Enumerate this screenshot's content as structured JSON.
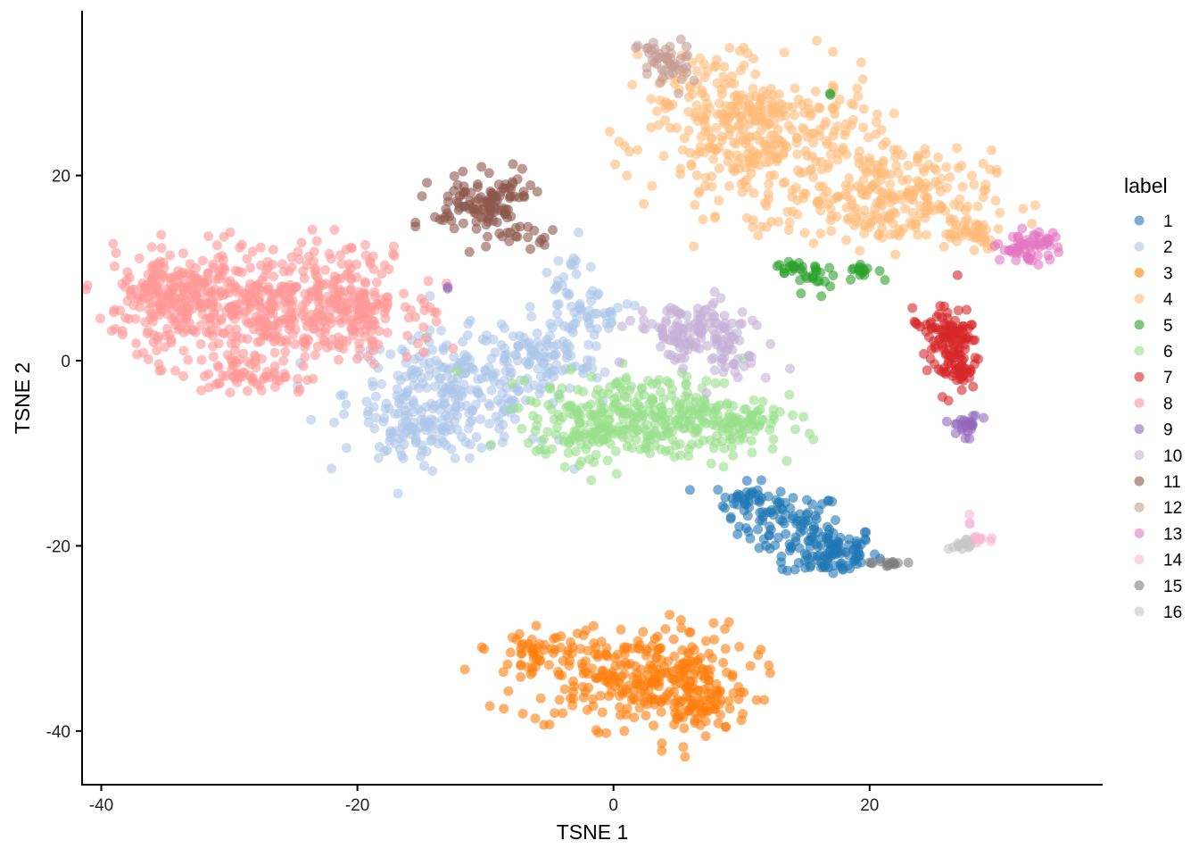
{
  "chart_data": {
    "type": "scatter",
    "title": "",
    "xlabel": "TSNE 1",
    "ylabel": "TSNE 2",
    "xlim": [
      -41.5,
      38.2
    ],
    "ylim": [
      -45.8,
      37.8
    ],
    "x_ticks": [
      -40,
      -20,
      0,
      20
    ],
    "x_tick_labels": [
      "-40",
      "-20",
      "0",
      "20"
    ],
    "y_ticks": [
      20,
      0,
      -20,
      -40
    ],
    "y_tick_labels": [
      "20",
      "0",
      "-20",
      "-40"
    ],
    "grid": false,
    "legend": {
      "title": "label",
      "position": "right"
    },
    "point_alpha": 0.6,
    "series": [
      {
        "name": "1",
        "color": "#1f77b4",
        "clusters": [
          {
            "cx": 13.8,
            "cy": -17.8,
            "sx": 2.0,
            "sy": 1.8,
            "n": 70
          },
          {
            "cx": 17.0,
            "cy": -20.6,
            "sx": 1.8,
            "sy": 1.4,
            "n": 100
          },
          {
            "cx": 10.5,
            "cy": -15.0,
            "sx": 1.3,
            "sy": 0.9,
            "n": 40
          }
        ]
      },
      {
        "name": "2",
        "color": "#aec7e8",
        "clusters": [
          {
            "cx": -12.5,
            "cy": -3.5,
            "sx": 4.2,
            "sy": 3.2,
            "n": 260
          },
          {
            "cx": -3.5,
            "cy": 5.5,
            "sx": 1.3,
            "sy": 3.5,
            "n": 60
          },
          {
            "cx": -16.0,
            "cy": -8.0,
            "sx": 2.0,
            "sy": 1.5,
            "n": 60
          },
          {
            "cx": -6.0,
            "cy": 0.0,
            "sx": 2.5,
            "sy": 2.0,
            "n": 60
          },
          {
            "cx": -1.0,
            "cy": 5.0,
            "sx": 1.8,
            "sy": 1.2,
            "n": 30
          }
        ]
      },
      {
        "name": "3",
        "color": "#ff7f0e",
        "clusters": [
          {
            "cx": 1.5,
            "cy": -34.0,
            "sx": 4.5,
            "sy": 2.8,
            "n": 280
          },
          {
            "cx": -6.5,
            "cy": -31.5,
            "sx": 1.2,
            "sy": 0.9,
            "n": 30
          },
          {
            "cx": 6.5,
            "cy": -36.5,
            "sx": 2.0,
            "sy": 2.0,
            "n": 90
          }
        ]
      },
      {
        "name": "4",
        "color": "#ffbb78",
        "clusters": [
          {
            "cx": 12.0,
            "cy": 23.5,
            "sx": 4.5,
            "sy": 3.8,
            "n": 320
          },
          {
            "cx": 21.5,
            "cy": 17.5,
            "sx": 4.0,
            "sy": 2.6,
            "n": 220
          },
          {
            "cx": 8.0,
            "cy": 28.5,
            "sx": 2.5,
            "sy": 2.5,
            "n": 80
          },
          {
            "cx": 27.5,
            "cy": 14.0,
            "sx": 1.5,
            "sy": 1.0,
            "n": 40
          }
        ]
      },
      {
        "name": "5",
        "color": "#2ca02c",
        "clusters": [
          {
            "cx": 14.0,
            "cy": 10.0,
            "sx": 0.6,
            "sy": 0.4,
            "n": 15
          },
          {
            "cx": 16.0,
            "cy": 9.0,
            "sx": 0.8,
            "sy": 0.8,
            "n": 20
          },
          {
            "cx": 19.5,
            "cy": 9.8,
            "sx": 0.6,
            "sy": 0.5,
            "n": 15
          },
          {
            "cx": 17.0,
            "cy": 28.5,
            "sx": 0.2,
            "sy": 0.2,
            "n": 2
          }
        ]
      },
      {
        "name": "6",
        "color": "#98df8a",
        "clusters": [
          {
            "cx": 3.0,
            "cy": -6.0,
            "sx": 4.5,
            "sy": 2.3,
            "n": 300
          },
          {
            "cx": -3.0,
            "cy": -7.5,
            "sx": 2.0,
            "sy": 1.5,
            "n": 60
          },
          {
            "cx": 9.0,
            "cy": -7.0,
            "sx": 2.0,
            "sy": 1.5,
            "n": 50
          }
        ]
      },
      {
        "name": "7",
        "color": "#d62728",
        "clusters": [
          {
            "cx": 26.5,
            "cy": 1.0,
            "sx": 1.0,
            "sy": 2.3,
            "n": 120
          },
          {
            "cx": 25.0,
            "cy": 4.0,
            "sx": 0.8,
            "sy": 0.8,
            "n": 20
          }
        ]
      },
      {
        "name": "8",
        "color": "#ff9896",
        "clusters": [
          {
            "cx": -28.0,
            "cy": 6.0,
            "sx": 5.5,
            "sy": 3.0,
            "n": 500
          },
          {
            "cx": -34.5,
            "cy": 7.0,
            "sx": 2.0,
            "sy": 2.0,
            "n": 100
          },
          {
            "cx": -20.5,
            "cy": 6.5,
            "sx": 2.5,
            "sy": 3.0,
            "n": 120
          },
          {
            "cx": -28.0,
            "cy": -1.5,
            "sx": 2.0,
            "sy": 1.0,
            "n": 60
          }
        ]
      },
      {
        "name": "9",
        "color": "#9467bd",
        "clusters": [
          {
            "cx": 27.5,
            "cy": -7.0,
            "sx": 0.6,
            "sy": 0.6,
            "n": 25
          },
          {
            "cx": -13.0,
            "cy": 8.0,
            "sx": 0.15,
            "sy": 0.1,
            "n": 2
          }
        ]
      },
      {
        "name": "10",
        "color": "#c5b0d5",
        "clusters": [
          {
            "cx": 6.0,
            "cy": 3.0,
            "sx": 2.3,
            "sy": 1.6,
            "n": 130
          },
          {
            "cx": 9.5,
            "cy": 0.5,
            "sx": 1.0,
            "sy": 1.5,
            "n": 30
          }
        ]
      },
      {
        "name": "11",
        "color": "#8c564b",
        "clusters": [
          {
            "cx": -10.5,
            "cy": 16.5,
            "sx": 1.8,
            "sy": 1.7,
            "n": 100
          },
          {
            "cx": -8.0,
            "cy": 18.5,
            "sx": 0.8,
            "sy": 1.0,
            "n": 20
          },
          {
            "cx": -7.0,
            "cy": 13.5,
            "sx": 1.2,
            "sy": 0.6,
            "n": 15
          }
        ]
      },
      {
        "name": "12",
        "color": "#c49c94",
        "clusters": [
          {
            "cx": 4.0,
            "cy": 32.0,
            "sx": 1.0,
            "sy": 1.5,
            "n": 50
          }
        ]
      },
      {
        "name": "13",
        "color": "#e377c2",
        "clusters": [
          {
            "cx": 32.5,
            "cy": 12.3,
            "sx": 1.2,
            "sy": 0.8,
            "n": 60
          }
        ]
      },
      {
        "name": "14",
        "color": "#f7b6d2",
        "clusters": [
          {
            "cx": 28.5,
            "cy": -19.3,
            "sx": 0.4,
            "sy": 0.3,
            "n": 10
          },
          {
            "cx": 28.0,
            "cy": -17.0,
            "sx": 0.2,
            "sy": 0.3,
            "n": 3
          }
        ]
      },
      {
        "name": "15",
        "color": "#7f7f7f",
        "clusters": [
          {
            "cx": 21.5,
            "cy": -22.0,
            "sx": 0.7,
            "sy": 0.15,
            "n": 15
          }
        ]
      },
      {
        "name": "16",
        "color": "#c7c7c7",
        "clusters": [
          {
            "cx": 27.2,
            "cy": -20.0,
            "sx": 0.5,
            "sy": 0.3,
            "n": 15
          }
        ]
      }
    ]
  }
}
